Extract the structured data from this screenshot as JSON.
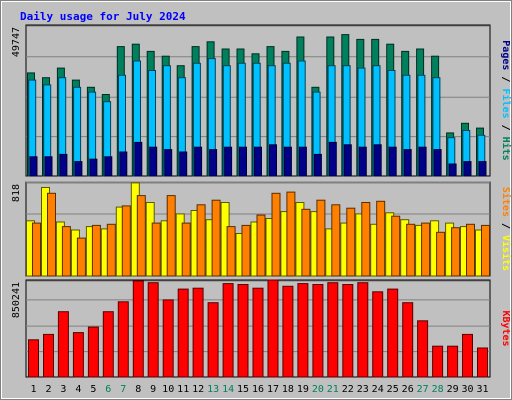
{
  "chart_data": {
    "type": "bar",
    "title": "Daily usage for July 2024",
    "categories": [
      "1",
      "2",
      "3",
      "4",
      "5",
      "6",
      "7",
      "8",
      "9",
      "10",
      "11",
      "12",
      "13",
      "14",
      "15",
      "16",
      "17",
      "18",
      "19",
      "20",
      "21",
      "22",
      "23",
      "24",
      "25",
      "26",
      "27",
      "28",
      "29",
      "30",
      "31"
    ],
    "weekend_days": [
      "6",
      "7",
      "13",
      "14",
      "20",
      "21",
      "27",
      "28"
    ],
    "panels": [
      {
        "id": "hits-files-pages",
        "y_tick_label": "49747",
        "y_tick_value": 49747,
        "ylim": [
          0,
          63000
        ],
        "right_labels": [
          "Pages",
          "Files",
          "Hits"
        ],
        "series": [
          {
            "name": "Hits",
            "color": "#00805c",
            "values": [
              43000,
              41000,
              45000,
              40000,
              37000,
              34000,
              54000,
              55000,
              52000,
              50000,
              46000,
              54000,
              56000,
              53000,
              53000,
              51000,
              54000,
              52000,
              58000,
              37000,
              58000,
              59000,
              57000,
              57000,
              55000,
              52000,
              53000,
              50000,
              18000,
              22000,
              20000
            ]
          },
          {
            "name": "Files",
            "color": "#00c0ff",
            "values": [
              40000,
              38000,
              41000,
              37000,
              35000,
              31000,
              42000,
              48000,
              44000,
              46000,
              41000,
              47000,
              49000,
              46000,
              47000,
              47000,
              46000,
              47000,
              48000,
              35000,
              46000,
              46000,
              45000,
              46000,
              44000,
              42000,
              42000,
              41000,
              16000,
              19000,
              17000
            ]
          },
          {
            "name": "Pages",
            "color": "#00008b",
            "values": [
              8000,
              8000,
              9000,
              6000,
              7000,
              8000,
              10000,
              14000,
              12000,
              11000,
              10000,
              12000,
              11000,
              12000,
              12000,
              12000,
              13000,
              12000,
              12000,
              9000,
              14000,
              13000,
              12000,
              13000,
              12000,
              11000,
              12000,
              11000,
              5000,
              6000,
              6000
            ]
          }
        ]
      },
      {
        "id": "visits-sites",
        "y_tick_label": "818",
        "y_tick_value": 818,
        "ylim": [
          0,
          818
        ],
        "right_labels": [
          "Sites",
          "Visits"
        ],
        "series": [
          {
            "name": "Visits",
            "color": "#ffff00",
            "values": [
              480,
              770,
              470,
              400,
              430,
              410,
              600,
              810,
              640,
              480,
              540,
              570,
              490,
              640,
              370,
              470,
              500,
              560,
              640,
              560,
              410,
              460,
              540,
              450,
              550,
              490,
              440,
              480,
              460,
              430,
              400
            ]
          },
          {
            "name": "Sites",
            "color": "#ff8000",
            "values": [
              460,
              720,
              430,
              330,
              440,
              450,
              610,
              700,
              460,
              700,
              460,
              620,
              660,
              430,
              440,
              530,
              720,
              730,
              580,
              660,
              620,
              590,
              640,
              650,
              520,
              450,
              460,
              380,
              420,
              450,
              440
            ]
          }
        ]
      },
      {
        "id": "kbytes",
        "y_tick_label": "850241",
        "y_tick_value": 850241,
        "ylim": [
          0,
          1070000
        ],
        "right_labels": [
          "KBytes"
        ],
        "series": [
          {
            "name": "KBytes",
            "color": "#ff0000",
            "values": [
              410000,
              470000,
              720000,
              490000,
              550000,
              720000,
              830000,
              1060000,
              1040000,
              850000,
              970000,
              980000,
              820000,
              1030000,
              1020000,
              980000,
              1070000,
              1000000,
              1030000,
              1020000,
              1040000,
              1020000,
              1040000,
              940000,
              970000,
              820000,
              620000,
              340000,
              340000,
              470000,
              320000
            ]
          }
        ]
      }
    ],
    "colors": {
      "background": "#c0c0c0",
      "plot_background": "#c0c0c0",
      "title": "#0000ff",
      "axis_text": "#000000",
      "weekend_text": "#00805c",
      "border": "#000000"
    }
  }
}
